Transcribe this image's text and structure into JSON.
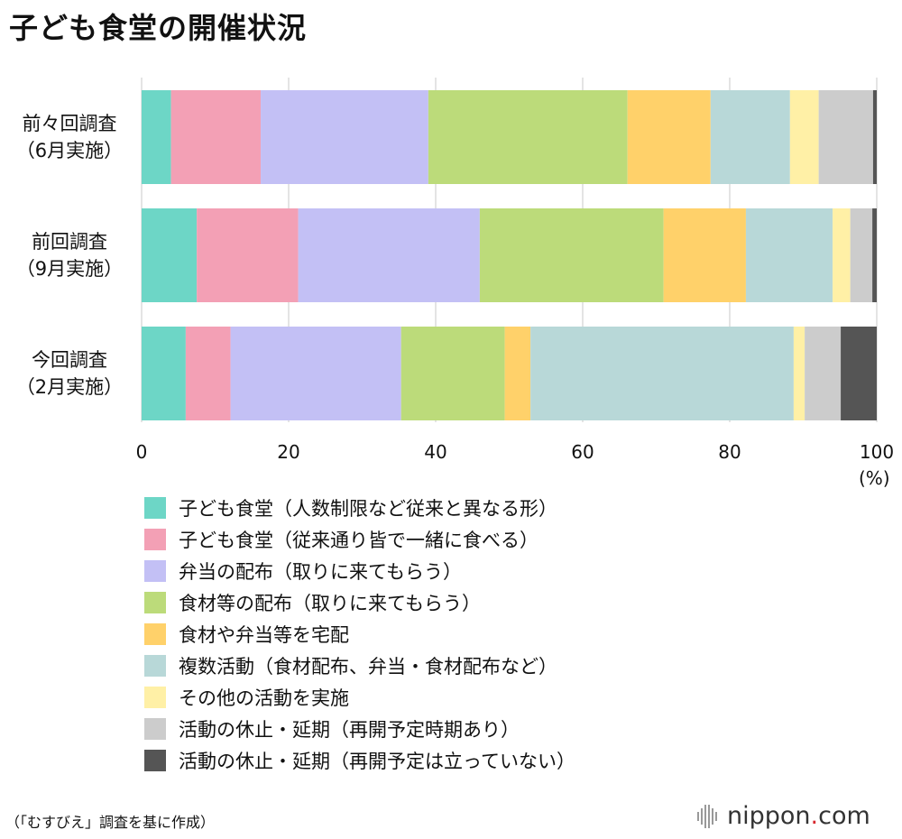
{
  "title": "子ども食堂の開催状況",
  "source": "（「むすびえ」調査を基に作成）",
  "brand": {
    "name": "nippon",
    "dot": ".",
    "suffix": "com",
    "dot_color": "#d7282f"
  },
  "chart_data": {
    "type": "bar",
    "orientation": "horizontal",
    "stacked": true,
    "title": "子ども食堂の開催状況",
    "unit_label": "(%)",
    "xlim": [
      0,
      100
    ],
    "x_ticks": [
      "0",
      "20",
      "40",
      "60",
      "80",
      "100"
    ],
    "grid": true,
    "legend_position": "bottom",
    "categories": [
      {
        "line1": "前々回調査",
        "line2": "（6月実施）"
      },
      {
        "line1": "前回調査",
        "line2": "（9月実施）"
      },
      {
        "line1": "今回調査",
        "line2": "（2月実施）"
      }
    ],
    "series": [
      {
        "name": "子ども食堂（人数制限など従来と異なる形）",
        "color": "#6dd6c6",
        "values": [
          4.0,
          7.5,
          6.0
        ]
      },
      {
        "name": "子ども食堂（従来通り皆で一緒に食べる）",
        "color": "#f3a0b5",
        "values": [
          12.2,
          13.8,
          6.1
        ]
      },
      {
        "name": "弁当の配布（取りに来てもらう）",
        "color": "#c3c0f5",
        "values": [
          22.8,
          24.7,
          23.2
        ]
      },
      {
        "name": "食材等の配布（取りに来てもらう）",
        "color": "#bcdb7a",
        "values": [
          27.1,
          25.0,
          14.1
        ]
      },
      {
        "name": "食材や弁当等を宅配",
        "color": "#ffd16a",
        "values": [
          11.3,
          11.2,
          3.5
        ]
      },
      {
        "name": "複数活動（食材配布、弁当・食材配布など）",
        "color": "#b8d8d8",
        "values": [
          10.8,
          11.8,
          35.8
        ]
      },
      {
        "name": "その他の活動を実施",
        "color": "#fff0a6",
        "values": [
          3.9,
          2.4,
          1.5
        ]
      },
      {
        "name": "活動の休止・延期（再開予定時期あり）",
        "color": "#cccccc",
        "values": [
          7.4,
          3.0,
          4.9
        ]
      },
      {
        "name": "活動の休止・延期（再開予定は立っていない）",
        "color": "#555555",
        "values": [
          0.5,
          0.6,
          4.9
        ]
      }
    ]
  }
}
